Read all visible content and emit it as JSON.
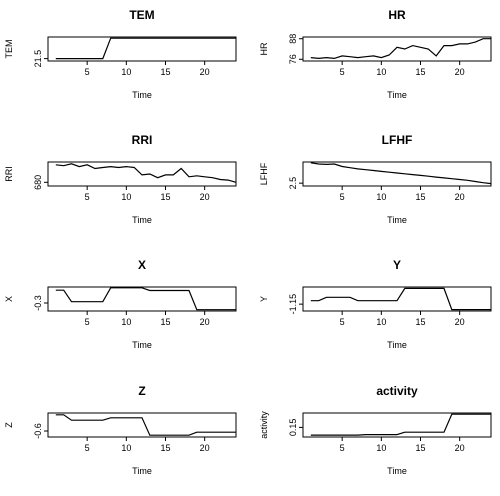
{
  "chart_data": [
    {
      "type": "line",
      "title": "TEM",
      "xlabel": "Time",
      "ylabel": "TEM",
      "xlim": [
        0,
        24
      ],
      "ylim": [
        21.3,
        23.3
      ],
      "xticks": [
        5,
        10,
        15,
        20
      ],
      "yticks": [
        21.5
      ],
      "x": [
        1,
        2,
        3,
        4,
        5,
        6,
        7,
        8,
        9,
        10,
        11,
        12,
        13,
        14,
        15,
        16,
        17,
        18,
        19,
        20,
        21,
        22,
        23,
        24
      ],
      "values": [
        21.5,
        21.5,
        21.5,
        21.5,
        21.5,
        21.5,
        21.5,
        23.2,
        23.2,
        23.2,
        23.2,
        23.2,
        23.2,
        23.2,
        23.2,
        23.2,
        23.2,
        23.2,
        23.2,
        23.2,
        23.2,
        23.2,
        23.2,
        23.2
      ]
    },
    {
      "type": "line",
      "title": "HR",
      "xlabel": "Time",
      "ylabel": "HR",
      "xlim": [
        0,
        24
      ],
      "ylim": [
        75,
        89
      ],
      "xticks": [
        5,
        10,
        15,
        20
      ],
      "yticks": [
        76,
        88
      ],
      "x": [
        1,
        2,
        3,
        4,
        5,
        6,
        7,
        8,
        9,
        10,
        11,
        12,
        13,
        14,
        15,
        16,
        17,
        18,
        19,
        20,
        21,
        22,
        23,
        24
      ],
      "values": [
        77,
        76.5,
        77,
        76.5,
        78,
        77.5,
        77,
        77.5,
        78,
        77,
        78.5,
        83,
        82,
        84,
        83,
        82,
        78,
        84,
        84,
        85,
        85,
        86,
        88,
        88
      ]
    },
    {
      "type": "line",
      "title": "RRI",
      "xlabel": "Time",
      "ylabel": "RRI",
      "xlim": [
        0,
        24
      ],
      "ylim": [
        660,
        790
      ],
      "xticks": [
        5,
        10,
        15,
        20
      ],
      "yticks": [
        680
      ],
      "x": [
        1,
        2,
        3,
        4,
        5,
        6,
        7,
        8,
        9,
        10,
        11,
        12,
        13,
        14,
        15,
        16,
        17,
        18,
        19,
        20,
        21,
        22,
        23,
        24
      ],
      "values": [
        775,
        770,
        780,
        765,
        775,
        755,
        760,
        765,
        760,
        765,
        760,
        720,
        725,
        705,
        720,
        720,
        755,
        710,
        715,
        710,
        705,
        695,
        692,
        680
      ]
    },
    {
      "type": "line",
      "title": "LFHF",
      "xlabel": "Time",
      "ylabel": "LFHF",
      "xlim": [
        0,
        24
      ],
      "ylim": [
        1.8,
        7.7
      ],
      "xticks": [
        5,
        10,
        15,
        20
      ],
      "yticks": [
        2.5
      ],
      "x": [
        1,
        2,
        3,
        4,
        5,
        6,
        7,
        8,
        9,
        10,
        11,
        12,
        13,
        14,
        15,
        16,
        17,
        18,
        19,
        20,
        21,
        22,
        23,
        24
      ],
      "values": [
        7.5,
        7.2,
        7.1,
        7.2,
        6.6,
        6.3,
        6.0,
        5.8,
        5.6,
        5.4,
        5.2,
        5.0,
        4.8,
        4.6,
        4.4,
        4.2,
        4.0,
        3.8,
        3.6,
        3.4,
        3.2,
        2.9,
        2.6,
        2.4
      ]
    },
    {
      "type": "line",
      "title": "X",
      "xlabel": "Time",
      "ylabel": "X",
      "xlim": [
        0,
        24
      ],
      "ylim": [
        -0.6,
        0.3
      ],
      "xticks": [
        5,
        10,
        15,
        20
      ],
      "yticks": [
        -0.3
      ],
      "x": [
        1,
        2,
        3,
        4,
        5,
        6,
        7,
        8,
        9,
        10,
        11,
        12,
        13,
        14,
        15,
        16,
        17,
        18,
        19,
        20,
        21,
        22,
        23,
        24
      ],
      "values": [
        0.18,
        0.18,
        -0.25,
        -0.25,
        -0.25,
        -0.25,
        -0.25,
        0.27,
        0.27,
        0.27,
        0.27,
        0.27,
        0.17,
        0.17,
        0.17,
        0.17,
        0.17,
        0.17,
        -0.55,
        -0.55,
        -0.55,
        -0.55,
        -0.55,
        -0.55
      ]
    },
    {
      "type": "line",
      "title": "Y",
      "xlabel": "Time",
      "ylabel": "Y",
      "xlim": [
        0,
        24
      ],
      "ylim": [
        -1.25,
        -0.9
      ],
      "xticks": [
        5,
        10,
        15,
        20
      ],
      "yticks": [
        -1.15
      ],
      "x": [
        1,
        2,
        3,
        4,
        5,
        6,
        7,
        8,
        9,
        10,
        11,
        12,
        13,
        14,
        15,
        16,
        17,
        18,
        19,
        20,
        21,
        22,
        23,
        24
      ],
      "values": [
        -1.1,
        -1.1,
        -1.05,
        -1.05,
        -1.05,
        -1.05,
        -1.1,
        -1.1,
        -1.1,
        -1.1,
        -1.1,
        -1.1,
        -0.92,
        -0.92,
        -0.92,
        -0.92,
        -0.92,
        -0.92,
        -1.23,
        -1.23,
        -1.23,
        -1.23,
        -1.23,
        -1.23
      ]
    },
    {
      "type": "line",
      "title": "Z",
      "xlabel": "Time",
      "ylabel": "Z",
      "xlim": [
        0,
        24
      ],
      "ylim": [
        -0.7,
        -0.3
      ],
      "xticks": [
        5,
        10,
        15,
        20
      ],
      "yticks": [
        -0.6
      ],
      "x": [
        1,
        2,
        3,
        4,
        5,
        6,
        7,
        8,
        9,
        10,
        11,
        12,
        13,
        14,
        15,
        16,
        17,
        18,
        19,
        20,
        21,
        22,
        23,
        24
      ],
      "values": [
        -0.33,
        -0.33,
        -0.42,
        -0.42,
        -0.42,
        -0.42,
        -0.42,
        -0.38,
        -0.38,
        -0.38,
        -0.38,
        -0.38,
        -0.67,
        -0.67,
        -0.67,
        -0.67,
        -0.67,
        -0.67,
        -0.62,
        -0.62,
        -0.62,
        -0.62,
        -0.62,
        -0.62
      ]
    },
    {
      "type": "line",
      "title": "activity",
      "xlabel": "Time",
      "ylabel": "activity",
      "xlim": [
        0,
        24
      ],
      "ylim": [
        0.11,
        0.21
      ],
      "xticks": [
        5,
        10,
        15,
        20
      ],
      "yticks": [
        0.15
      ],
      "x": [
        1,
        2,
        3,
        4,
        5,
        6,
        7,
        8,
        9,
        10,
        11,
        12,
        13,
        14,
        15,
        16,
        17,
        18,
        19,
        20,
        21,
        22,
        23,
        24
      ],
      "values": [
        0.118,
        0.118,
        0.118,
        0.118,
        0.118,
        0.118,
        0.118,
        0.12,
        0.12,
        0.12,
        0.12,
        0.12,
        0.13,
        0.13,
        0.13,
        0.13,
        0.13,
        0.13,
        0.205,
        0.205,
        0.205,
        0.205,
        0.205,
        0.205
      ]
    }
  ]
}
